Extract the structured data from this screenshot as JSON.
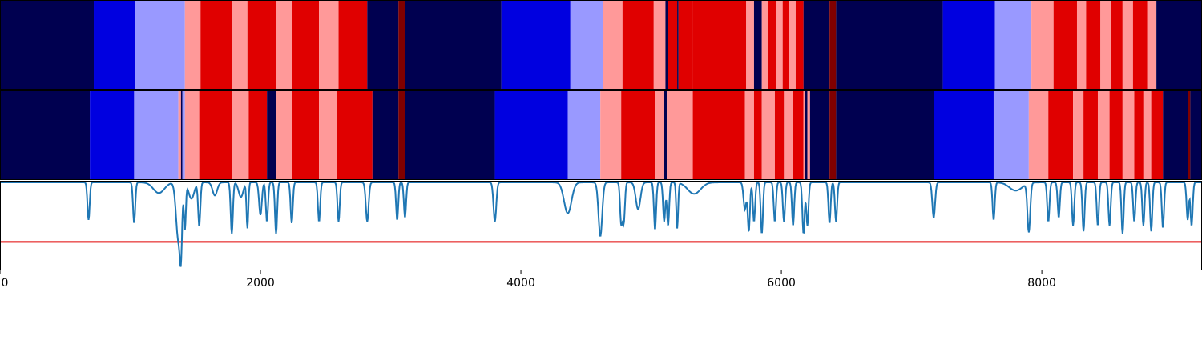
{
  "colors": {
    "label_colors": [
      "#000050",
      "#0000e0",
      "#9999ff",
      "#ff9999",
      "#e00000",
      "#800000"
    ],
    "signal_line": "#1f77b4",
    "threshold_line": "#e00000",
    "frame": "#000000"
  },
  "chart_data": {
    "type": "heatmap",
    "xlim": [
      0,
      9230
    ],
    "xticks": [
      0,
      2000,
      4000,
      6000,
      8000
    ],
    "xtick_labels": [
      "0",
      "2000",
      "4000",
      "6000",
      "8000"
    ],
    "tracks": [
      {
        "segments": [
          [
            0,
            720,
            0
          ],
          [
            720,
            1040,
            1
          ],
          [
            1040,
            1420,
            2
          ],
          [
            1420,
            1540,
            3
          ],
          [
            1540,
            1780,
            4
          ],
          [
            1780,
            1900,
            3
          ],
          [
            1900,
            2120,
            4
          ],
          [
            2120,
            2240,
            3
          ],
          [
            2240,
            2450,
            4
          ],
          [
            2450,
            2600,
            3
          ],
          [
            2600,
            2820,
            4
          ],
          [
            2820,
            3060,
            0
          ],
          [
            3060,
            3110,
            5
          ],
          [
            3110,
            3850,
            0
          ],
          [
            3850,
            4380,
            1
          ],
          [
            4380,
            4630,
            2
          ],
          [
            4630,
            4780,
            3
          ],
          [
            4780,
            5020,
            4
          ],
          [
            5020,
            5110,
            3
          ],
          [
            5110,
            5130,
            0
          ],
          [
            5130,
            5200,
            4
          ],
          [
            5200,
            5210,
            0
          ],
          [
            5210,
            5320,
            4
          ],
          [
            5320,
            5730,
            4
          ],
          [
            5730,
            5790,
            3
          ],
          [
            5790,
            5850,
            0
          ],
          [
            5850,
            5900,
            3
          ],
          [
            5900,
            5960,
            4
          ],
          [
            5960,
            6010,
            3
          ],
          [
            6010,
            6060,
            4
          ],
          [
            6060,
            6110,
            3
          ],
          [
            6110,
            6170,
            4
          ],
          [
            6170,
            6370,
            0
          ],
          [
            6370,
            6420,
            5
          ],
          [
            6420,
            7240,
            0
          ],
          [
            7240,
            7640,
            1
          ],
          [
            7640,
            7920,
            2
          ],
          [
            7920,
            8090,
            3
          ],
          [
            8090,
            8270,
            4
          ],
          [
            8270,
            8340,
            3
          ],
          [
            8340,
            8450,
            4
          ],
          [
            8450,
            8530,
            3
          ],
          [
            8530,
            8620,
            4
          ],
          [
            8620,
            8700,
            3
          ],
          [
            8700,
            8810,
            4
          ],
          [
            8810,
            8880,
            3
          ],
          [
            8880,
            9230,
            0
          ]
        ]
      },
      {
        "segments": [
          [
            0,
            690,
            0
          ],
          [
            690,
            1030,
            1
          ],
          [
            1030,
            1370,
            2
          ],
          [
            1370,
            1390,
            3
          ],
          [
            1390,
            1400,
            0
          ],
          [
            1400,
            1420,
            2
          ],
          [
            1420,
            1530,
            3
          ],
          [
            1530,
            1780,
            4
          ],
          [
            1780,
            1910,
            3
          ],
          [
            1910,
            2050,
            4
          ],
          [
            2050,
            2120,
            0
          ],
          [
            2120,
            2240,
            3
          ],
          [
            2240,
            2450,
            4
          ],
          [
            2450,
            2590,
            3
          ],
          [
            2590,
            2860,
            4
          ],
          [
            2860,
            3060,
            0
          ],
          [
            3060,
            3110,
            5
          ],
          [
            3110,
            3800,
            0
          ],
          [
            3800,
            4360,
            1
          ],
          [
            4360,
            4610,
            2
          ],
          [
            4610,
            4770,
            3
          ],
          [
            4770,
            5030,
            4
          ],
          [
            5030,
            5100,
            3
          ],
          [
            5100,
            5120,
            0
          ],
          [
            5120,
            5320,
            3
          ],
          [
            5320,
            5720,
            4
          ],
          [
            5720,
            5790,
            3
          ],
          [
            5790,
            5850,
            4
          ],
          [
            5850,
            5950,
            3
          ],
          [
            5950,
            6020,
            4
          ],
          [
            6020,
            6090,
            3
          ],
          [
            6090,
            6170,
            4
          ],
          [
            6170,
            6180,
            3
          ],
          [
            6180,
            6200,
            0
          ],
          [
            6200,
            6220,
            3
          ],
          [
            6220,
            6370,
            0
          ],
          [
            6370,
            6420,
            5
          ],
          [
            6420,
            7170,
            0
          ],
          [
            7170,
            7630,
            1
          ],
          [
            7630,
            7900,
            2
          ],
          [
            7900,
            8050,
            3
          ],
          [
            8050,
            8240,
            4
          ],
          [
            8240,
            8320,
            3
          ],
          [
            8320,
            8430,
            4
          ],
          [
            8430,
            8520,
            3
          ],
          [
            8520,
            8620,
            4
          ],
          [
            8620,
            8710,
            3
          ],
          [
            8710,
            8780,
            4
          ],
          [
            8780,
            8840,
            3
          ],
          [
            8840,
            8930,
            4
          ],
          [
            8930,
            9120,
            0
          ],
          [
            9120,
            9140,
            5
          ],
          [
            9140,
            9230,
            0
          ]
        ]
      }
    ],
    "signal": {
      "ylim": [
        -0.1,
        1.0
      ],
      "threshold": 0.25,
      "baseline": 0.98,
      "dips": [
        [
          680,
          0.52,
          12
        ],
        [
          1030,
          0.48,
          12
        ],
        [
          1220,
          0.85,
          60
        ],
        [
          1370,
          0.27,
          25
        ],
        [
          1390,
          0.35,
          12
        ],
        [
          1420,
          0.42,
          10
        ],
        [
          1470,
          0.78,
          30
        ],
        [
          1530,
          0.45,
          12
        ],
        [
          1650,
          0.82,
          25
        ],
        [
          1780,
          0.35,
          12
        ],
        [
          1850,
          0.8,
          25
        ],
        [
          1900,
          0.42,
          10
        ],
        [
          2000,
          0.58,
          15
        ],
        [
          2050,
          0.5,
          12
        ],
        [
          2120,
          0.35,
          12
        ],
        [
          2240,
          0.48,
          12
        ],
        [
          2450,
          0.5,
          12
        ],
        [
          2600,
          0.5,
          12
        ],
        [
          2820,
          0.5,
          15
        ],
        [
          3050,
          0.52,
          12
        ],
        [
          3110,
          0.55,
          12
        ],
        [
          3800,
          0.5,
          15
        ],
        [
          4360,
          0.6,
          40
        ],
        [
          4610,
          0.32,
          20
        ],
        [
          4770,
          0.48,
          12
        ],
        [
          4790,
          0.5,
          12
        ],
        [
          4900,
          0.65,
          25
        ],
        [
          5030,
          0.4,
          12
        ],
        [
          5100,
          0.5,
          12
        ],
        [
          5130,
          0.45,
          12
        ],
        [
          5200,
          0.42,
          10
        ],
        [
          5330,
          0.84,
          70
        ],
        [
          5720,
          0.65,
          15
        ],
        [
          5750,
          0.38,
          12
        ],
        [
          5790,
          0.5,
          12
        ],
        [
          5850,
          0.35,
          12
        ],
        [
          5950,
          0.5,
          12
        ],
        [
          6020,
          0.5,
          12
        ],
        [
          6090,
          0.45,
          12
        ],
        [
          6170,
          0.35,
          12
        ],
        [
          6200,
          0.45,
          12
        ],
        [
          6370,
          0.48,
          12
        ],
        [
          6420,
          0.5,
          12
        ],
        [
          7170,
          0.55,
          15
        ],
        [
          7630,
          0.52,
          12
        ],
        [
          7800,
          0.88,
          70
        ],
        [
          7900,
          0.38,
          15
        ],
        [
          8050,
          0.5,
          12
        ],
        [
          8130,
          0.55,
          12
        ],
        [
          8240,
          0.45,
          12
        ],
        [
          8320,
          0.38,
          12
        ],
        [
          8430,
          0.45,
          12
        ],
        [
          8520,
          0.45,
          12
        ],
        [
          8620,
          0.35,
          12
        ],
        [
          8710,
          0.5,
          12
        ],
        [
          8780,
          0.45,
          12
        ],
        [
          8840,
          0.38,
          12
        ],
        [
          8930,
          0.42,
          12
        ],
        [
          9120,
          0.52,
          12
        ],
        [
          9150,
          0.45,
          12
        ]
      ]
    }
  }
}
